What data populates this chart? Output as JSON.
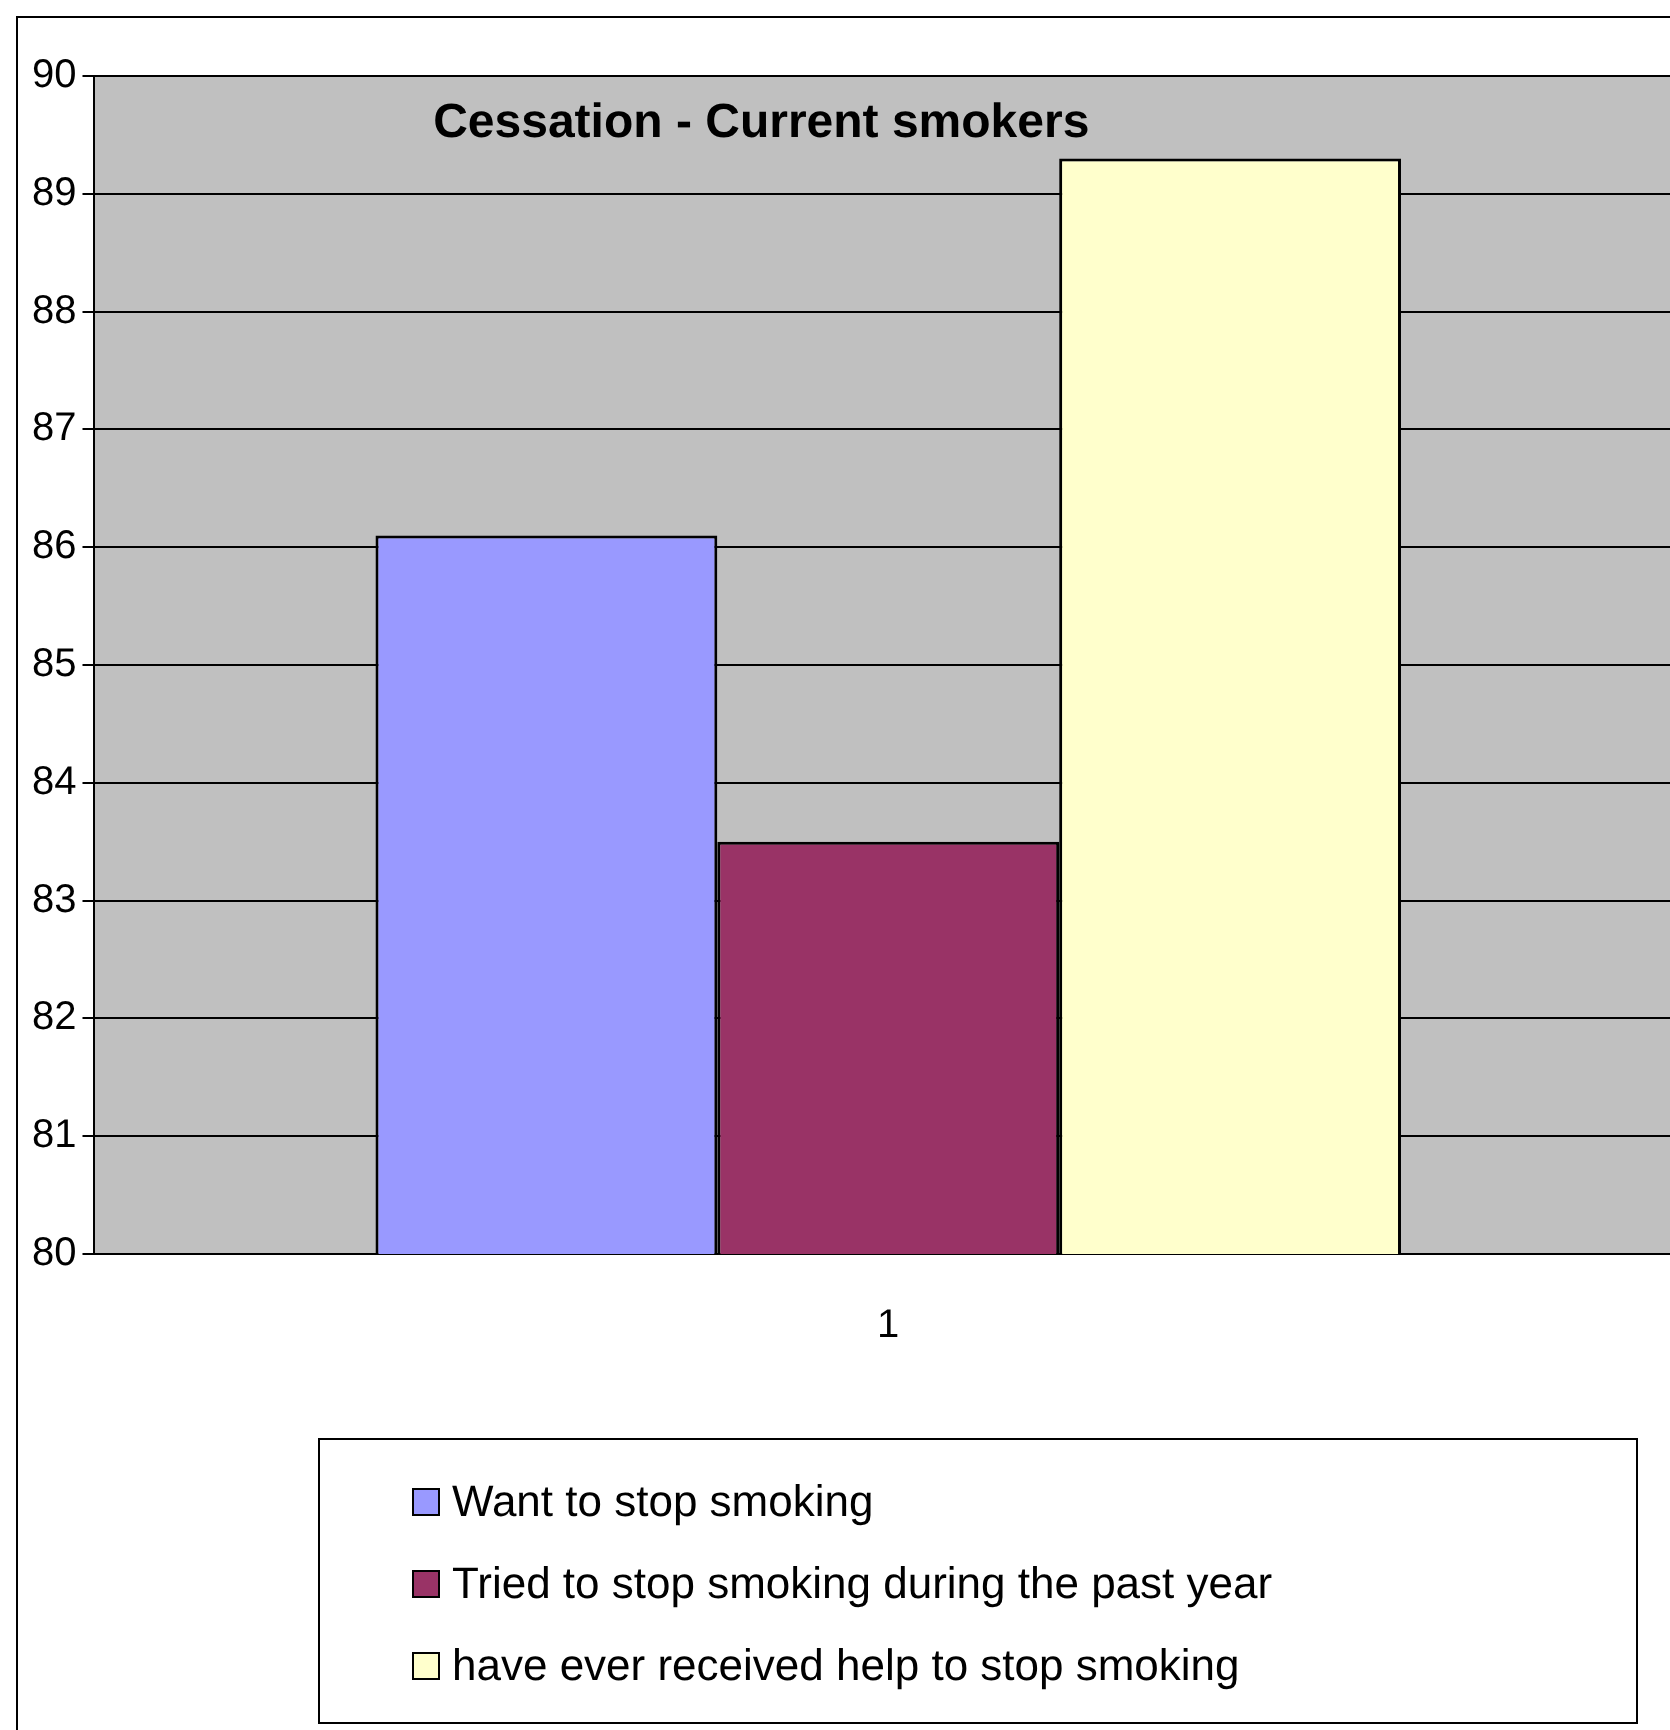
{
  "chart_data": {
    "type": "bar",
    "title": "Cessation - Current smokers",
    "categories": [
      "1"
    ],
    "series": [
      {
        "name": "Want to stop smoking",
        "color": "#9999ff",
        "values": [
          86.1
        ]
      },
      {
        "name": "Tried to stop smoking during the past year",
        "color": "#993366",
        "values": [
          83.5
        ]
      },
      {
        "name": "have ever received help to stop smoking",
        "color": "#ffffcc",
        "values": [
          89.3
        ]
      }
    ],
    "ylim": [
      80,
      90
    ],
    "yticks": [
      80,
      81,
      82,
      83,
      84,
      85,
      86,
      87,
      88,
      89,
      90
    ],
    "grid": "y",
    "legend": "bottom"
  }
}
